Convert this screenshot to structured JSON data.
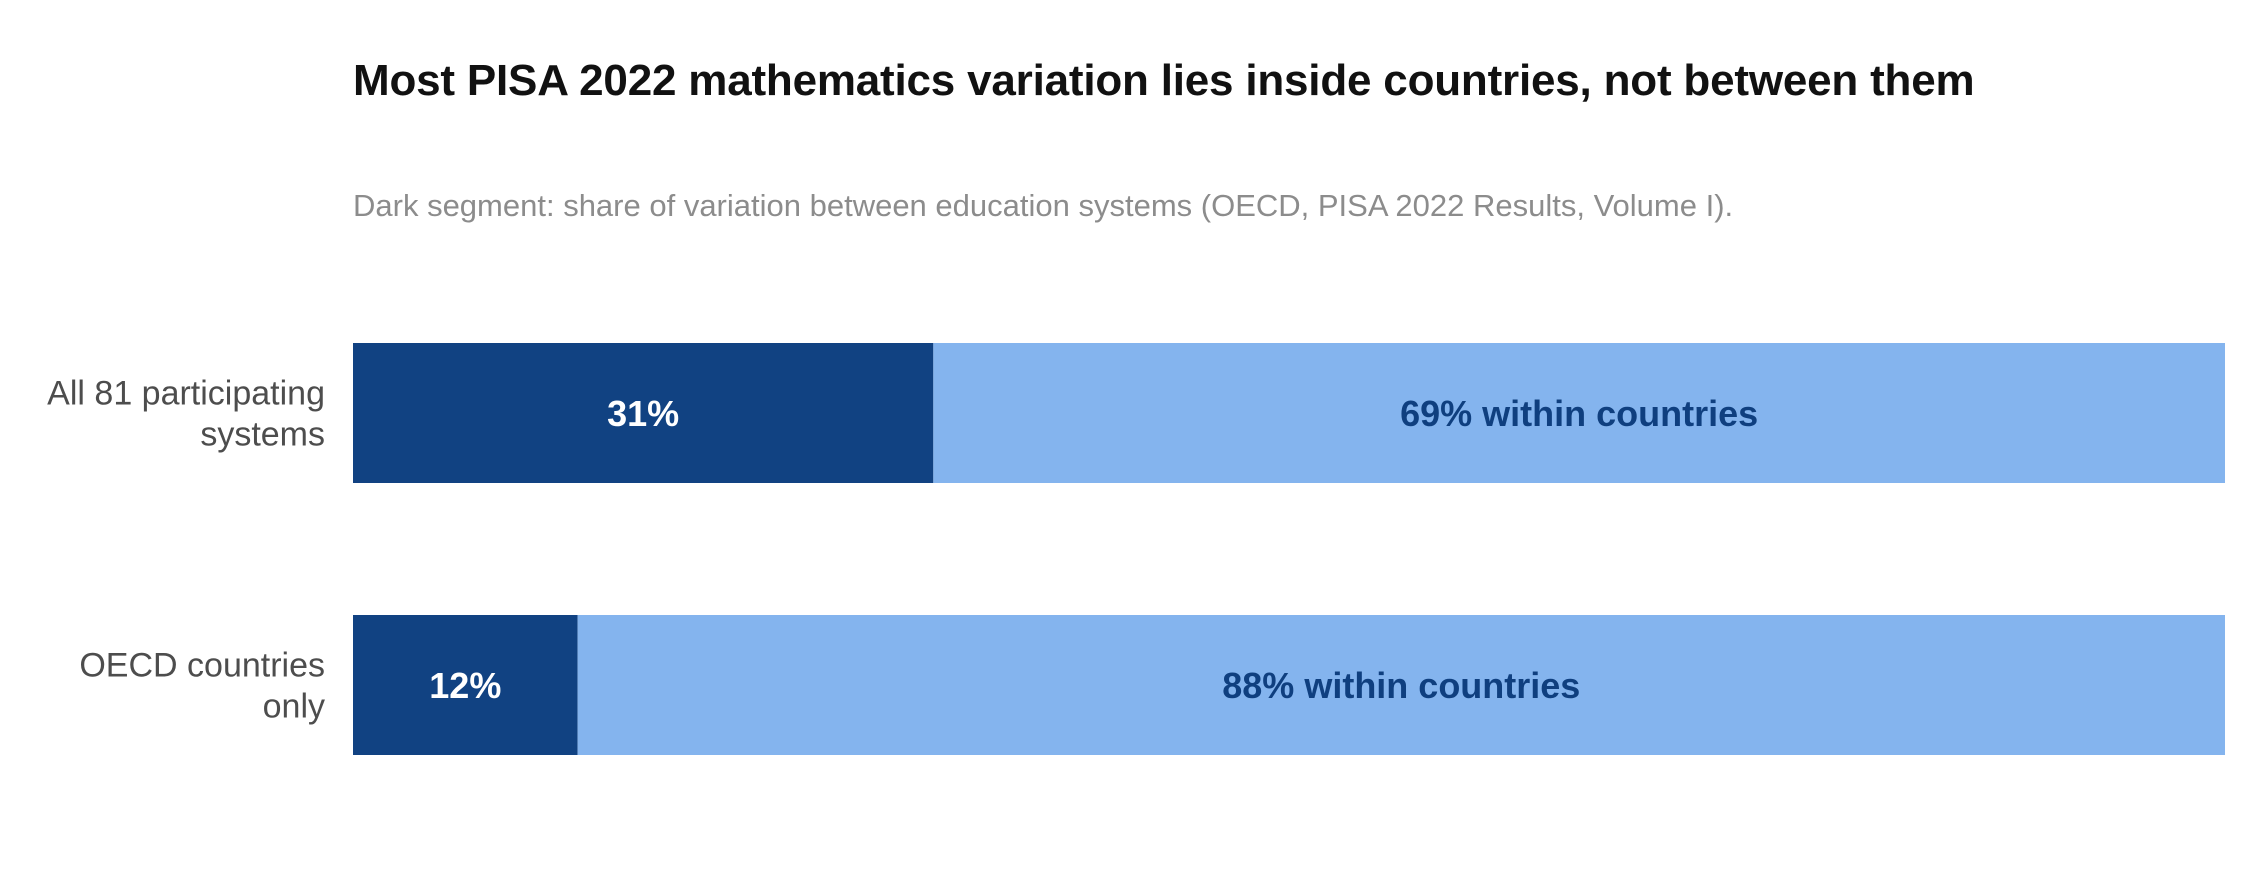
{
  "chart_data": {
    "type": "bar",
    "orientation": "horizontal",
    "stacked": true,
    "title": "Most PISA 2022 mathematics variation lies inside countries, not between them",
    "subtitle": "Dark segment: share of variation between education systems (OECD, PISA 2022 Results, Volume I).",
    "xlim": [
      0,
      100
    ],
    "grid": false,
    "legend": "none",
    "categories": [
      [
        "All 81 participating",
        "systems"
      ],
      [
        "OECD countries",
        "only"
      ]
    ],
    "series": [
      {
        "values": [
          31,
          12
        ],
        "color": "#114282",
        "labels": [
          "31%",
          "12%"
        ]
      },
      {
        "values": [
          69,
          88
        ],
        "color": "#84b4ee",
        "labels": [
          "69% within countries",
          "88% within countries"
        ]
      }
    ]
  }
}
